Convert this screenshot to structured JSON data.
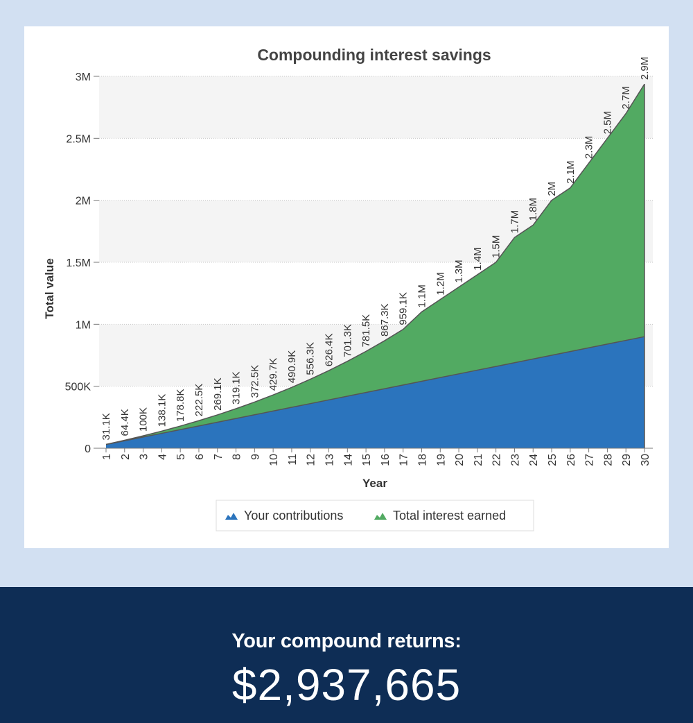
{
  "chart_data": {
    "type": "area",
    "stacked": true,
    "title": "Compounding interest savings",
    "xlabel": "Year",
    "ylabel": "Total value",
    "ylim": [
      0,
      3000000
    ],
    "y_ticks": [
      {
        "value": 0,
        "label": "0"
      },
      {
        "value": 500000,
        "label": "500K"
      },
      {
        "value": 1000000,
        "label": "1M"
      },
      {
        "value": 1500000,
        "label": "1.5M"
      },
      {
        "value": 2000000,
        "label": "2M"
      },
      {
        "value": 2500000,
        "label": "2.5M"
      },
      {
        "value": 3000000,
        "label": "3M"
      }
    ],
    "x": [
      1,
      2,
      3,
      4,
      5,
      6,
      7,
      8,
      9,
      10,
      11,
      12,
      13,
      14,
      15,
      16,
      17,
      18,
      19,
      20,
      21,
      22,
      23,
      24,
      25,
      26,
      27,
      28,
      29,
      30
    ],
    "totals": [
      31100,
      64400,
      100000,
      138100,
      178800,
      222500,
      269100,
      319100,
      372500,
      429700,
      490900,
      556300,
      626400,
      701300,
      781500,
      867300,
      959100,
      1100000,
      1200000,
      1300000,
      1400000,
      1500000,
      1700000,
      1800000,
      2000000,
      2100000,
      2300000,
      2500000,
      2700000,
      2937665
    ],
    "total_labels": [
      "31.1K",
      "64.4K",
      "100K",
      "138.1K",
      "178.8K",
      "222.5K",
      "269.1K",
      "319.1K",
      "372.5K",
      "429.7K",
      "490.9K",
      "556.3K",
      "626.4K",
      "701.3K",
      "781.5K",
      "867.3K",
      "959.1K",
      "1.1M",
      "1.2M",
      "1.3M",
      "1.4M",
      "1.5M",
      "1.7M",
      "1.8M",
      "2M",
      "2.1M",
      "2.3M",
      "2.5M",
      "2.7M",
      "2.9M"
    ],
    "series": [
      {
        "name": "Your contributions",
        "color": "#2b74bd",
        "values": [
          30000,
          60000,
          90000,
          120000,
          150000,
          180000,
          210000,
          240000,
          270000,
          300000,
          330000,
          360000,
          390000,
          420000,
          450000,
          480000,
          510000,
          540000,
          570000,
          600000,
          630000,
          660000,
          690000,
          720000,
          750000,
          780000,
          810000,
          840000,
          870000,
          900000
        ]
      },
      {
        "name": "Total interest earned",
        "color": "#52aa62",
        "values": [
          1100,
          4400,
          10000,
          18100,
          28800,
          42500,
          59100,
          79100,
          102500,
          129700,
          160900,
          196300,
          236400,
          281300,
          331500,
          387300,
          449100,
          560000,
          630000,
          700000,
          770000,
          840000,
          1010000,
          1080000,
          1250000,
          1320000,
          1490000,
          1660000,
          1830000,
          2037665
        ]
      }
    ],
    "legend_position": "bottom-center",
    "grid": true
  },
  "results": {
    "label": "Your compound returns:",
    "value": "$2,937,665"
  }
}
